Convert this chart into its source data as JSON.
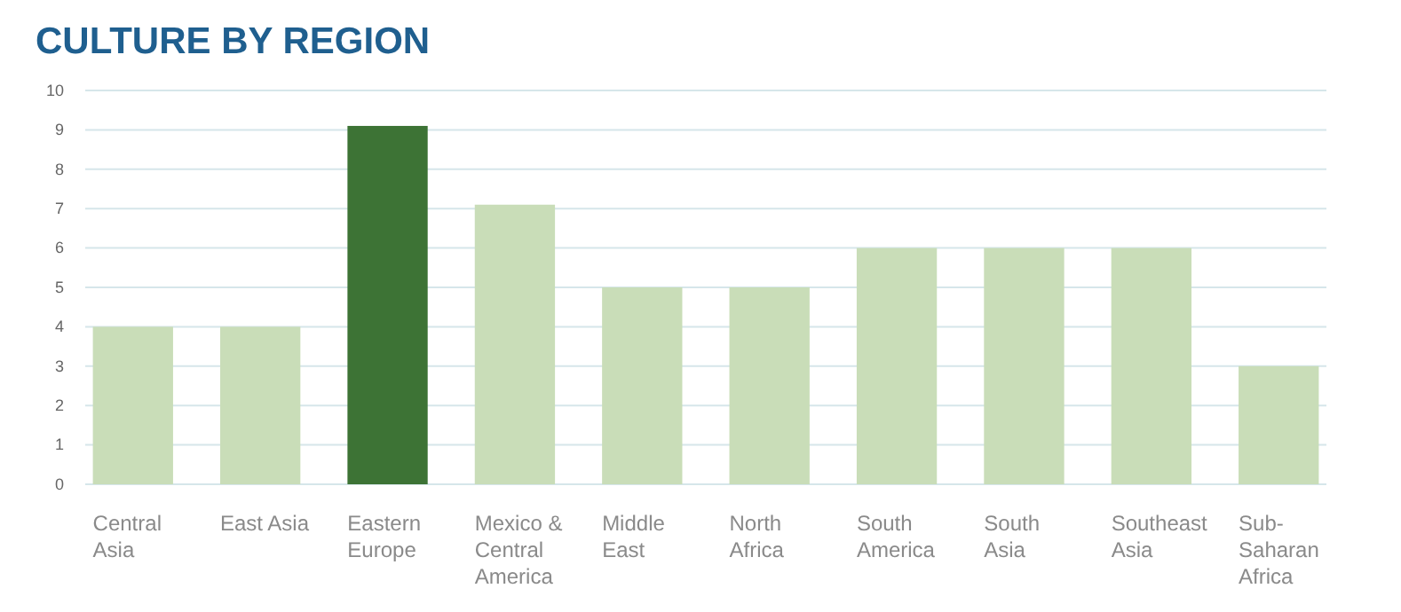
{
  "chart_data": {
    "type": "bar",
    "title": "CULTURE BY REGION",
    "categories": [
      "Central Asia",
      "East Asia",
      "Eastern Europe",
      "Mexico & Central America",
      "Middle East",
      "North Africa",
      "South America",
      "South Asia",
      "Southeast Asia",
      "Sub-Saharan Africa"
    ],
    "values": [
      4,
      4,
      9.1,
      7.1,
      5,
      5,
      6,
      6,
      6,
      3
    ],
    "colors": [
      "#c9ddb8",
      "#c9ddb8",
      "#3d7335",
      "#c9ddb8",
      "#c9ddb8",
      "#c9ddb8",
      "#c9ddb8",
      "#c9ddb8",
      "#c9ddb8",
      "#c9ddb8"
    ],
    "ylim": [
      0,
      10
    ],
    "yticks": [
      0,
      1,
      2,
      3,
      4,
      5,
      6,
      7,
      8,
      9,
      10
    ],
    "grid": "y"
  }
}
